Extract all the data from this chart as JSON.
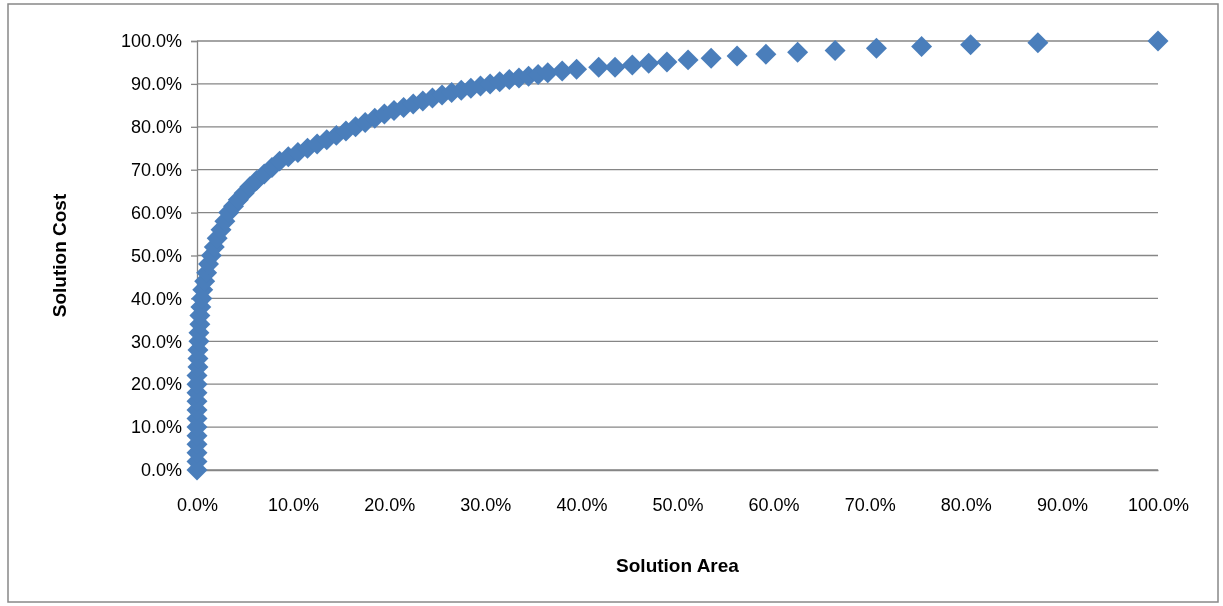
{
  "chart_data": {
    "type": "scatter",
    "xlabel": "Solution Area",
    "ylabel": "Solution Cost",
    "marker": "diamond",
    "grid": "y",
    "xlim": [
      0,
      100
    ],
    "ylim": [
      0,
      100
    ],
    "xticks": [
      {
        "value": 0,
        "label": "0.0%"
      },
      {
        "value": 10,
        "label": "10.0%"
      },
      {
        "value": 20,
        "label": "20.0%"
      },
      {
        "value": 30,
        "label": "30.0%"
      },
      {
        "value": 40,
        "label": "40.0%"
      },
      {
        "value": 50,
        "label": "50.0%"
      },
      {
        "value": 60,
        "label": "60.0%"
      },
      {
        "value": 70,
        "label": "70.0%"
      },
      {
        "value": 80,
        "label": "80.0%"
      },
      {
        "value": 90,
        "label": "90.0%"
      },
      {
        "value": 100,
        "label": "100.0%"
      }
    ],
    "yticks": [
      {
        "value": 0,
        "label": "0.0%"
      },
      {
        "value": 10,
        "label": "10.0%"
      },
      {
        "value": 20,
        "label": "20.0%"
      },
      {
        "value": 30,
        "label": "30.0%"
      },
      {
        "value": 40,
        "label": "40.0%"
      },
      {
        "value": 50,
        "label": "50.0%"
      },
      {
        "value": 60,
        "label": "60.0%"
      },
      {
        "value": 70,
        "label": "70.0%"
      },
      {
        "value": 80,
        "label": "80.0%"
      },
      {
        "value": 90,
        "label": "90.0%"
      },
      {
        "value": 100,
        "label": "100.0%"
      }
    ],
    "series": [
      {
        "color": "#4a7ebb",
        "x": [
          0,
          0,
          0,
          0,
          0,
          0,
          0,
          0,
          0,
          0,
          0,
          0,
          0.1,
          0.1,
          0.1,
          0.2,
          0.2,
          0.3,
          0.3,
          0.4,
          0.5,
          0.6,
          0.8,
          1,
          1.2,
          1.5,
          1.8,
          2.1,
          2.5,
          2.9,
          3.3,
          3.8,
          4.3,
          4.9,
          5.5,
          6.2,
          7,
          7.8,
          8.6,
          9.5,
          10.5,
          11.5,
          12.5,
          13.5,
          14.5,
          15.5,
          16.5,
          17.5,
          18.5,
          19.5,
          20.5,
          21.5,
          22.5,
          23.5,
          24.5,
          25.5,
          26.5,
          27.5,
          28.5,
          29.5,
          30.5,
          31.5,
          32.5,
          33.5,
          34.5,
          35.5,
          36.5,
          38,
          39.5,
          41.8,
          43.5,
          45.3,
          47,
          48.9,
          51.1,
          53.5,
          56.2,
          59.2,
          62.5,
          66.4,
          70.7,
          75.4,
          80.5,
          87.5,
          100
        ],
        "values": [
          0,
          2,
          4,
          6,
          8,
          10,
          12,
          14,
          16,
          18,
          20,
          22,
          24,
          26,
          28,
          30,
          32,
          34,
          36,
          38,
          40,
          42,
          44,
          46,
          48,
          50,
          52,
          54,
          56,
          58,
          60,
          61.5,
          63,
          64.5,
          66,
          67.5,
          69,
          70.5,
          72,
          73,
          74,
          75,
          76,
          77,
          78,
          79,
          80,
          81,
          82,
          83,
          83.8,
          84.5,
          85.3,
          86,
          86.7,
          87.4,
          88,
          88.5,
          89,
          89.5,
          90,
          90.5,
          91,
          91.4,
          91.8,
          92.2,
          92.6,
          93,
          93.4,
          93.9,
          93.9,
          94.4,
          94.8,
          95.1,
          95.6,
          96,
          96.5,
          96.9,
          97.4,
          97.8,
          98.3,
          98.7,
          99.1,
          99.6,
          100
        ]
      }
    ]
  }
}
